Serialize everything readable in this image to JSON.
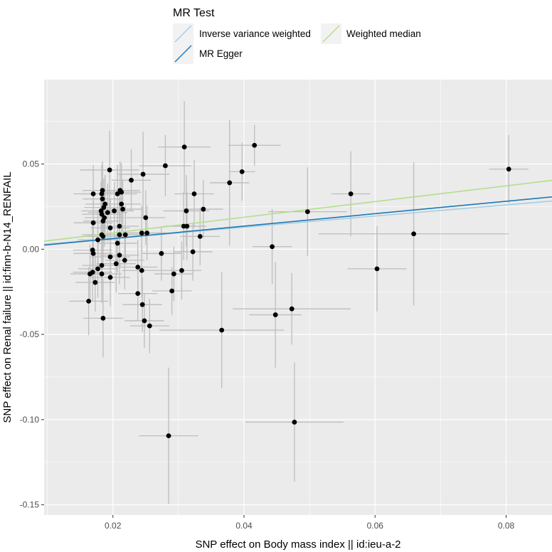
{
  "chart_data": {
    "type": "scatter",
    "xlabel": "SNP effect on Body mass index || id:ieu-a-2",
    "ylabel": "SNP effect on Renal failure || id:finn-b-N14_RENFAIL",
    "xlim": [
      0.0095,
      0.087
    ],
    "ylim": [
      -0.156,
      0.0995
    ],
    "x_ticks": [
      0.02,
      0.04,
      0.06,
      0.08
    ],
    "x_tick_labels": [
      "0.02",
      "0.04",
      "0.06",
      "0.08"
    ],
    "y_ticks": [
      0.05,
      0.0,
      -0.05,
      -0.1,
      -0.15
    ],
    "y_tick_labels": [
      "0.05",
      "0.00",
      "-0.05",
      "-0.10",
      "-0.15"
    ],
    "grid": true,
    "legend": {
      "title": "MR Test",
      "position": "top",
      "items": [
        {
          "label": "Inverse variance weighted",
          "color": "#a6cee3"
        },
        {
          "label": "Weighted median",
          "color": "#b2df8a"
        },
        {
          "label": "MR Egger",
          "color": "#1f78b4"
        }
      ]
    },
    "lines": [
      {
        "method": "Inverse variance weighted",
        "color": "#a6cee3",
        "x": [
          0.0095,
          0.087
        ],
        "y": [
          0.0029,
          0.0283
        ]
      },
      {
        "method": "MR Egger",
        "color": "#1f78b4",
        "x": [
          0.0095,
          0.087
        ],
        "y": [
          0.0024,
          0.0307
        ]
      },
      {
        "method": "Weighted median",
        "color": "#b2df8a",
        "x": [
          0.0095,
          0.087
        ],
        "y": [
          0.0047,
          0.0404
        ]
      }
    ],
    "points": [
      {
        "x": 0.0804,
        "y": 0.047,
        "xerr": 0.003,
        "yerr": 0.02
      },
      {
        "x": 0.0416,
        "y": 0.061,
        "xerr": 0.004,
        "yerr": 0.012
      },
      {
        "x": 0.0309,
        "y": 0.06,
        "xerr": 0.004,
        "yerr": 0.027
      },
      {
        "x": 0.0563,
        "y": 0.0325,
        "xerr": 0.003,
        "yerr": 0.025
      },
      {
        "x": 0.0397,
        "y": 0.0455,
        "xerr": 0.002,
        "yerr": 0.017
      },
      {
        "x": 0.0378,
        "y": 0.039,
        "xerr": 0.003,
        "yerr": 0.037
      },
      {
        "x": 0.0497,
        "y": 0.022,
        "xerr": 0.006,
        "yerr": 0.026
      },
      {
        "x": 0.0659,
        "y": 0.009,
        "xerr": 0.0145,
        "yerr": 0.042
      },
      {
        "x": 0.0603,
        "y": -0.0115,
        "xerr": 0.0045,
        "yerr": 0.025
      },
      {
        "x": 0.0443,
        "y": 0.0015,
        "xerr": 0.003,
        "yerr": 0.022
      },
      {
        "x": 0.0448,
        "y": -0.0385,
        "xerr": 0.004,
        "yerr": 0.031
      },
      {
        "x": 0.0473,
        "y": -0.035,
        "xerr": 0.009,
        "yerr": 0.021
      },
      {
        "x": 0.0366,
        "y": -0.0475,
        "xerr": 0.0095,
        "yerr": 0.034
      },
      {
        "x": 0.0477,
        "y": -0.1015,
        "xerr": 0.0075,
        "yerr": 0.035
      },
      {
        "x": 0.0285,
        "y": -0.1095,
        "xerr": 0.0045,
        "yerr": 0.04
      },
      {
        "x": 0.028,
        "y": 0.049,
        "xerr": 0.004,
        "yerr": 0.018
      },
      {
        "x": 0.0246,
        "y": 0.044,
        "xerr": 0.004,
        "yerr": 0.025
      },
      {
        "x": 0.0195,
        "y": 0.0465,
        "xerr": 0.0045,
        "yerr": 0.023
      },
      {
        "x": 0.0228,
        "y": 0.0405,
        "xerr": 0.003,
        "yerr": 0.018
      },
      {
        "x": 0.0324,
        "y": 0.0325,
        "xerr": 0.003,
        "yerr": 0.02
      },
      {
        "x": 0.0338,
        "y": 0.0235,
        "xerr": 0.003,
        "yerr": 0.017
      },
      {
        "x": 0.0312,
        "y": 0.0225,
        "xerr": 0.0035,
        "yerr": 0.021
      },
      {
        "x": 0.0308,
        "y": 0.0135,
        "xerr": 0.003,
        "yerr": 0.02
      },
      {
        "x": 0.0313,
        "y": 0.0135,
        "xerr": 0.003,
        "yerr": 0.02
      },
      {
        "x": 0.0333,
        "y": 0.0075,
        "xerr": 0.003,
        "yerr": 0.017
      },
      {
        "x": 0.0322,
        "y": -0.0015,
        "xerr": 0.003,
        "yerr": 0.017
      },
      {
        "x": 0.0274,
        "y": -0.0025,
        "xerr": 0.003,
        "yerr": 0.016
      },
      {
        "x": 0.0305,
        "y": -0.0125,
        "xerr": 0.003,
        "yerr": 0.017
      },
      {
        "x": 0.0293,
        "y": -0.0145,
        "xerr": 0.003,
        "yerr": 0.016
      },
      {
        "x": 0.029,
        "y": -0.0245,
        "xerr": 0.003,
        "yerr": 0.014
      },
      {
        "x": 0.025,
        "y": 0.0185,
        "xerr": 0.003,
        "yerr": 0.016
      },
      {
        "x": 0.0252,
        "y": 0.0095,
        "xerr": 0.003,
        "yerr": 0.016
      },
      {
        "x": 0.0244,
        "y": 0.0095,
        "xerr": 0.003,
        "yerr": 0.016
      },
      {
        "x": 0.0238,
        "y": -0.0105,
        "xerr": 0.003,
        "yerr": 0.016
      },
      {
        "x": 0.0244,
        "y": -0.0125,
        "xerr": 0.003,
        "yerr": 0.016
      },
      {
        "x": 0.0238,
        "y": -0.026,
        "xerr": 0.003,
        "yerr": 0.016
      },
      {
        "x": 0.0245,
        "y": -0.0325,
        "xerr": 0.003,
        "yerr": 0.016
      },
      {
        "x": 0.0248,
        "y": -0.042,
        "xerr": 0.003,
        "yerr": 0.016
      },
      {
        "x": 0.0256,
        "y": -0.045,
        "xerr": 0.003,
        "yerr": 0.016
      },
      {
        "x": 0.0185,
        "y": -0.0405,
        "xerr": 0.003,
        "yerr": 0.023
      },
      {
        "x": 0.0163,
        "y": -0.0305,
        "xerr": 0.003,
        "yerr": 0.02
      },
      {
        "x": 0.0173,
        "y": -0.0195,
        "xerr": 0.003,
        "yerr": 0.017
      },
      {
        "x": 0.0196,
        "y": -0.0165,
        "xerr": 0.003,
        "yerr": 0.017
      },
      {
        "x": 0.0183,
        "y": -0.0145,
        "xerr": 0.003,
        "yerr": 0.017
      },
      {
        "x": 0.0165,
        "y": -0.0145,
        "xerr": 0.003,
        "yerr": 0.017
      },
      {
        "x": 0.0169,
        "y": -0.0135,
        "xerr": 0.003,
        "yerr": 0.017
      },
      {
        "x": 0.0177,
        "y": -0.0115,
        "xerr": 0.003,
        "yerr": 0.017
      },
      {
        "x": 0.0183,
        "y": -0.0095,
        "xerr": 0.003,
        "yerr": 0.017
      },
      {
        "x": 0.0205,
        "y": -0.0085,
        "xerr": 0.003,
        "yerr": 0.017
      },
      {
        "x": 0.0218,
        "y": -0.0065,
        "xerr": 0.003,
        "yerr": 0.017
      },
      {
        "x": 0.0196,
        "y": -0.0045,
        "xerr": 0.003,
        "yerr": 0.017
      },
      {
        "x": 0.021,
        "y": -0.0035,
        "xerr": 0.003,
        "yerr": 0.017
      },
      {
        "x": 0.017,
        "y": -0.0025,
        "xerr": 0.003,
        "yerr": 0.017
      },
      {
        "x": 0.0169,
        "y": -0.0005,
        "xerr": 0.003,
        "yerr": 0.017
      },
      {
        "x": 0.0207,
        "y": 0.0035,
        "xerr": 0.003,
        "yerr": 0.017
      },
      {
        "x": 0.0177,
        "y": 0.0055,
        "xerr": 0.003,
        "yerr": 0.017
      },
      {
        "x": 0.0185,
        "y": 0.0075,
        "xerr": 0.003,
        "yerr": 0.017
      },
      {
        "x": 0.0183,
        "y": 0.0085,
        "xerr": 0.003,
        "yerr": 0.017
      },
      {
        "x": 0.021,
        "y": 0.0085,
        "xerr": 0.003,
        "yerr": 0.017
      },
      {
        "x": 0.0219,
        "y": 0.0085,
        "xerr": 0.003,
        "yerr": 0.017
      },
      {
        "x": 0.0196,
        "y": 0.0125,
        "xerr": 0.003,
        "yerr": 0.017
      },
      {
        "x": 0.021,
        "y": 0.0135,
        "xerr": 0.003,
        "yerr": 0.017
      },
      {
        "x": 0.017,
        "y": 0.0155,
        "xerr": 0.003,
        "yerr": 0.017
      },
      {
        "x": 0.0185,
        "y": 0.0165,
        "xerr": 0.003,
        "yerr": 0.017
      },
      {
        "x": 0.0187,
        "y": 0.0185,
        "xerr": 0.003,
        "yerr": 0.017
      },
      {
        "x": 0.0183,
        "y": 0.0205,
        "xerr": 0.003,
        "yerr": 0.017
      },
      {
        "x": 0.0192,
        "y": 0.0215,
        "xerr": 0.003,
        "yerr": 0.017
      },
      {
        "x": 0.0202,
        "y": 0.0225,
        "xerr": 0.003,
        "yerr": 0.017
      },
      {
        "x": 0.0182,
        "y": 0.0225,
        "xerr": 0.003,
        "yerr": 0.017
      },
      {
        "x": 0.0215,
        "y": 0.0235,
        "xerr": 0.003,
        "yerr": 0.017
      },
      {
        "x": 0.0186,
        "y": 0.0245,
        "xerr": 0.003,
        "yerr": 0.017
      },
      {
        "x": 0.0213,
        "y": 0.0265,
        "xerr": 0.003,
        "yerr": 0.017
      },
      {
        "x": 0.0188,
        "y": 0.0265,
        "xerr": 0.003,
        "yerr": 0.017
      },
      {
        "x": 0.0184,
        "y": 0.0295,
        "xerr": 0.003,
        "yerr": 0.017
      },
      {
        "x": 0.017,
        "y": 0.0325,
        "xerr": 0.003,
        "yerr": 0.017
      },
      {
        "x": 0.0183,
        "y": 0.0325,
        "xerr": 0.003,
        "yerr": 0.017
      },
      {
        "x": 0.0207,
        "y": 0.0325,
        "xerr": 0.003,
        "yerr": 0.017
      },
      {
        "x": 0.0213,
        "y": 0.0335,
        "xerr": 0.003,
        "yerr": 0.017
      },
      {
        "x": 0.0211,
        "y": 0.0345,
        "xerr": 0.003,
        "yerr": 0.017
      },
      {
        "x": 0.0184,
        "y": 0.0345,
        "xerr": 0.003,
        "yerr": 0.017
      }
    ]
  }
}
